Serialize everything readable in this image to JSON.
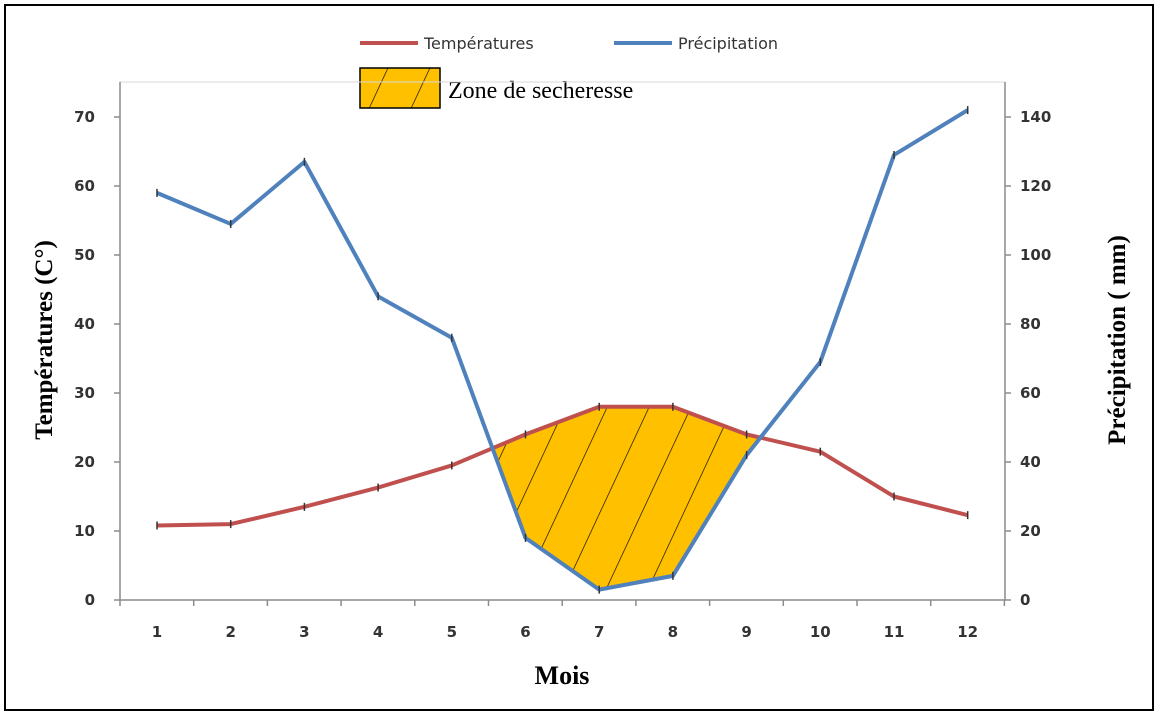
{
  "chart_data": {
    "type": "line",
    "x": [
      1,
      2,
      3,
      4,
      5,
      6,
      7,
      8,
      9,
      10,
      11,
      12
    ],
    "xlabel": "Mois",
    "ylabel_left": "Températures (C°)",
    "ylabel_right": "Précipitation ( mm)",
    "ylim_left": [
      0,
      70
    ],
    "ylim_right": [
      0,
      140
    ],
    "yticks_left": [
      0,
      10,
      20,
      30,
      40,
      50,
      60,
      70
    ],
    "yticks_right": [
      0,
      20,
      40,
      60,
      80,
      100,
      120,
      140
    ],
    "series": [
      {
        "name": "Températures",
        "axis": "left",
        "color": "#c0504d",
        "values": [
          10.8,
          11,
          13.5,
          16.3,
          19.5,
          24,
          28,
          28,
          24,
          21.5,
          15,
          12.3
        ]
      },
      {
        "name": "Précipitation",
        "axis": "right",
        "color": "#4f81bd",
        "values": [
          118,
          109,
          127,
          88,
          76,
          18,
          3,
          7,
          42,
          69,
          129,
          142
        ]
      }
    ],
    "fill_region": {
      "label": "Zone de secheresse",
      "color": "#ffc000",
      "hatch": "diagonal"
    },
    "legend_position": "top-center",
    "grid": false
  }
}
